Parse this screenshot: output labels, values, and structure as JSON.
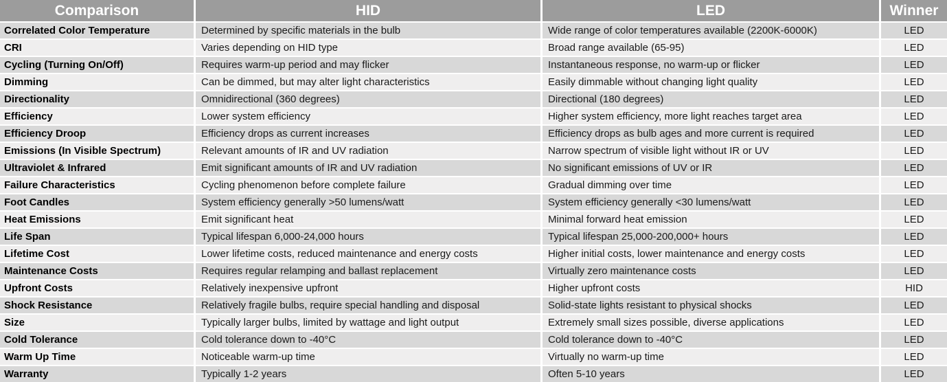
{
  "table": {
    "headers": [
      "Comparison",
      "HID",
      "LED",
      "Winner"
    ],
    "rows": [
      {
        "comparison": "Correlated Color Temperature",
        "hid": "Determined by specific materials in the bulb",
        "led": "Wide range of color temperatures available (2200K-6000K)",
        "winner": "LED"
      },
      {
        "comparison": "CRI",
        "hid": "Varies depending on HID type",
        "led": "Broad range available (65-95)",
        "winner": "LED"
      },
      {
        "comparison": "Cycling (Turning On/Off)",
        "hid": "Requires warm-up period and may flicker",
        "led": "Instantaneous response, no warm-up or flicker",
        "winner": "LED"
      },
      {
        "comparison": "Dimming",
        "hid": "Can be dimmed, but may alter light characteristics",
        "led": "Easily dimmable without changing light quality",
        "winner": "LED"
      },
      {
        "comparison": "Directionality",
        "hid": "Omnidirectional (360 degrees)",
        "led": "Directional (180 degrees)",
        "winner": "LED"
      },
      {
        "comparison": "Efficiency",
        "hid": "Lower system efficiency",
        "led": "Higher system efficiency, more light reaches target area",
        "winner": "LED"
      },
      {
        "comparison": "Efficiency Droop",
        "hid": "Efficiency drops as current increases",
        "led": "Efficiency drops as bulb ages and more current is required",
        "winner": "LED"
      },
      {
        "comparison": "Emissions (In Visible Spectrum)",
        "hid": "Relevant amounts of IR and UV radiation",
        "led": "Narrow spectrum of visible light without IR or UV",
        "winner": "LED"
      },
      {
        "comparison": "Ultraviolet & Infrared",
        "hid": "Emit significant amounts of IR and UV radiation",
        "led": "No significant emissions of UV or IR",
        "winner": "LED"
      },
      {
        "comparison": "Failure Characteristics",
        "hid": "Cycling phenomenon before complete failure",
        "led": "Gradual dimming over time",
        "winner": "LED"
      },
      {
        "comparison": "Foot Candles",
        "hid": "System efficiency generally >50 lumens/watt",
        "led": "System efficiency generally <30 lumens/watt",
        "winner": "LED"
      },
      {
        "comparison": "Heat Emissions",
        "hid": "Emit significant heat",
        "led": "Minimal forward heat emission",
        "winner": "LED"
      },
      {
        "comparison": "Life Span",
        "hid": "Typical lifespan 6,000-24,000 hours",
        "led": "Typical lifespan 25,000-200,000+ hours",
        "winner": "LED"
      },
      {
        "comparison": "Lifetime Cost",
        "hid": "Lower lifetime costs, reduced maintenance and energy costs",
        "led": "Higher initial costs, lower maintenance and energy costs",
        "winner": "LED"
      },
      {
        "comparison": "Maintenance Costs",
        "hid": "Requires regular relamping and ballast replacement",
        "led": "Virtually zero maintenance costs",
        "winner": "LED"
      },
      {
        "comparison": "Upfront Costs",
        "hid": "Relatively inexpensive upfront",
        "led": "Higher upfront costs",
        "winner": "HID"
      },
      {
        "comparison": "Shock Resistance",
        "hid": "Relatively fragile bulbs, require special handling and disposal",
        "led": "Solid-state lights resistant to physical shocks",
        "winner": "LED"
      },
      {
        "comparison": "Size",
        "hid": "Typically larger bulbs, limited by wattage and light output",
        "led": "Extremely small sizes possible, diverse applications",
        "winner": "LED"
      },
      {
        "comparison": "Cold Tolerance",
        "hid": "Cold tolerance down to -40°C",
        "led": "Cold tolerance down to -40°C",
        "winner": "LED"
      },
      {
        "comparison": "Warm Up Time",
        "hid": "Noticeable warm-up time",
        "led": "Virtually no warm-up time",
        "winner": "LED"
      },
      {
        "comparison": "Warranty",
        "hid": "Typically 1-2 years",
        "led": "Often 5-10 years",
        "winner": "LED"
      }
    ]
  },
  "colors": {
    "header_background": "#9c9c9c",
    "header_text": "#ffffff",
    "row_odd_background": "#d8d8d8",
    "row_even_background": "#efeeee",
    "body_text": "#1a1a1a",
    "separator": "#ffffff"
  }
}
